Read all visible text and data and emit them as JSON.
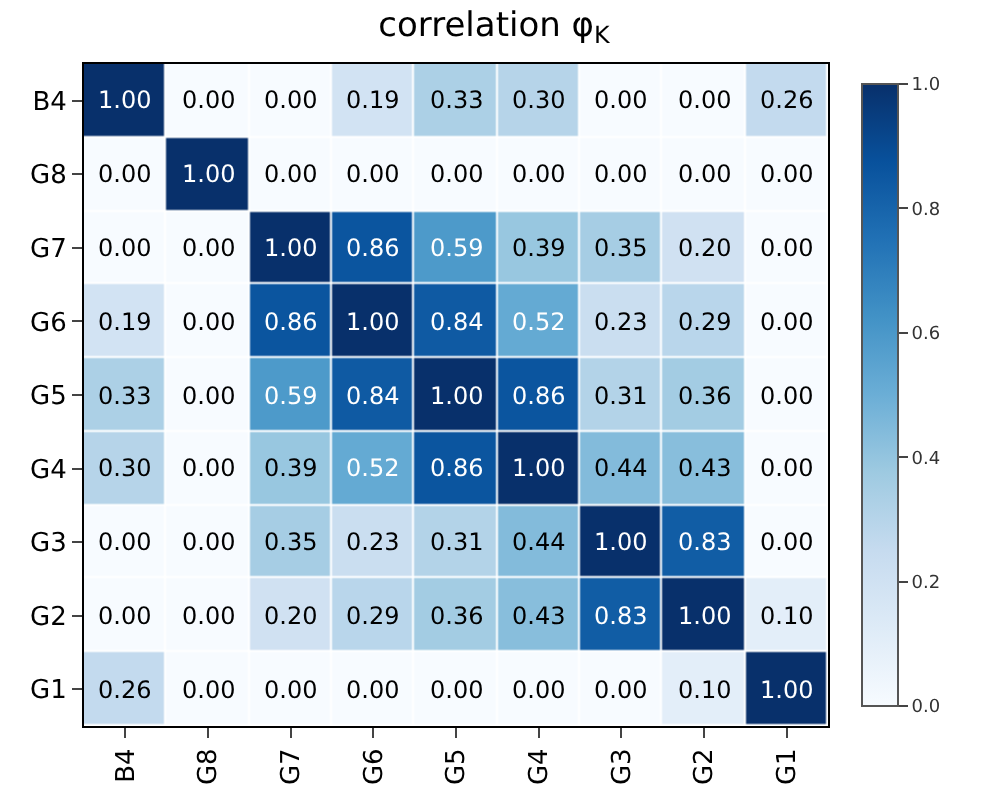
{
  "chart_data": {
    "type": "heatmap",
    "title": "correlation φ$_{K}$",
    "categories": [
      "B4",
      "G8",
      "G7",
      "G6",
      "G5",
      "G4",
      "G3",
      "G2",
      "G1"
    ],
    "y_categories": [
      "B4",
      "G8",
      "G7",
      "G6",
      "G5",
      "G4",
      "G3",
      "G2",
      "G1"
    ],
    "cells": [
      [
        1.0,
        0.0,
        0.0,
        0.19,
        0.33,
        0.3,
        0.0,
        0.0,
        0.26
      ],
      [
        0.0,
        1.0,
        0.0,
        0.0,
        0.0,
        0.0,
        0.0,
        0.0,
        0.0
      ],
      [
        0.0,
        0.0,
        1.0,
        0.86,
        0.59,
        0.39,
        0.35,
        0.2,
        0.0
      ],
      [
        0.19,
        0.0,
        0.86,
        1.0,
        0.84,
        0.52,
        0.23,
        0.29,
        0.0
      ],
      [
        0.33,
        0.0,
        0.59,
        0.84,
        1.0,
        0.86,
        0.31,
        0.36,
        0.0
      ],
      [
        0.3,
        0.0,
        0.39,
        0.52,
        0.86,
        1.0,
        0.44,
        0.43,
        0.0
      ],
      [
        0.0,
        0.0,
        0.35,
        0.23,
        0.31,
        0.44,
        1.0,
        0.83,
        0.0
      ],
      [
        0.0,
        0.0,
        0.2,
        0.29,
        0.36,
        0.43,
        0.83,
        1.0,
        0.1
      ],
      [
        0.26,
        0.0,
        0.0,
        0.0,
        0.0,
        0.0,
        0.0,
        0.1,
        1.0
      ]
    ],
    "cell_labels": [
      [
        "1.00",
        "0.00",
        "0.00",
        "0.19",
        "0.33",
        "0.30",
        "0.00",
        "0.00",
        "0.26"
      ],
      [
        "0.00",
        "1.00",
        "0.00",
        "0.00",
        "0.00",
        "0.00",
        "0.00",
        "0.00",
        "0.00"
      ],
      [
        "0.00",
        "0.00",
        "1.00",
        "0.86",
        "0.59",
        "0.39",
        "0.35",
        "0.20",
        "0.00"
      ],
      [
        "0.19",
        "0.00",
        "0.86",
        "1.00",
        "0.84",
        "0.52",
        "0.23",
        "0.29",
        "0.00"
      ],
      [
        "0.33",
        "0.00",
        "0.59",
        "0.84",
        "1.00",
        "0.86",
        "0.31",
        "0.36",
        "0.00"
      ],
      [
        "0.30",
        "0.00",
        "0.39",
        "0.52",
        "0.86",
        "1.00",
        "0.44",
        "0.43",
        "0.00"
      ],
      [
        "0.00",
        "0.00",
        "0.35",
        "0.23",
        "0.31",
        "0.44",
        "1.00",
        "0.83",
        "0.00"
      ],
      [
        "0.00",
        "0.00",
        "0.20",
        "0.29",
        "0.36",
        "0.43",
        "0.83",
        "1.00",
        "0.10"
      ],
      [
        "0.26",
        "0.00",
        "0.00",
        "0.00",
        "0.00",
        "0.00",
        "0.00",
        "0.10",
        "1.00"
      ]
    ],
    "clim": [
      0,
      1
    ],
    "cticks": [
      {
        "value": 0,
        "label": "0.0"
      },
      {
        "value": 0.2,
        "label": "0.2"
      },
      {
        "value": 0.4,
        "label": "0.4"
      },
      {
        "value": 0.6,
        "label": "0.6"
      },
      {
        "value": 0.8,
        "label": "0.8"
      },
      {
        "value": 1,
        "label": "1.0"
      }
    ]
  }
}
